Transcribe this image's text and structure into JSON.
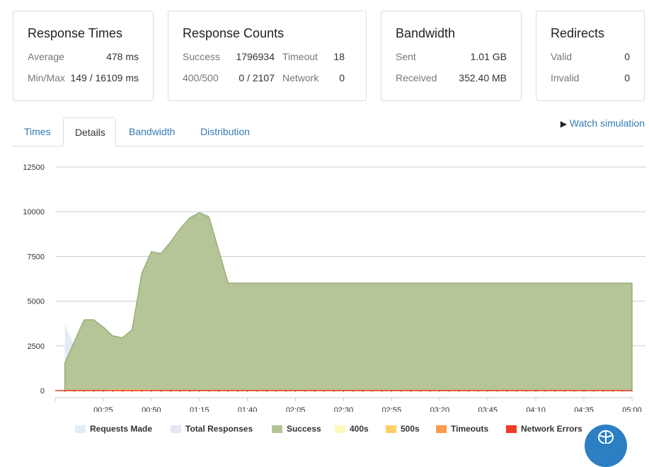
{
  "cards": {
    "response_times": {
      "title": "Response Times",
      "average_label": "Average",
      "average_value": "478 ms",
      "minmax_label": "Min/Max",
      "minmax_value": "149 / 16109 ms"
    },
    "response_counts": {
      "title": "Response Counts",
      "success_label": "Success",
      "success_value": "1796934",
      "timeout_label": "Timeout",
      "timeout_value": "18",
      "errors_label": "400/500",
      "errors_value": "0 / 2107",
      "network_label": "Network",
      "network_value": "0"
    },
    "bandwidth": {
      "title": "Bandwidth",
      "sent_label": "Sent",
      "sent_value": "1.01 GB",
      "received_label": "Received",
      "received_value": "352.40 MB"
    },
    "redirects": {
      "title": "Redirects",
      "valid_label": "Valid",
      "valid_value": "0",
      "invalid_label": "Invalid",
      "invalid_value": "0"
    }
  },
  "tabs": [
    {
      "label": "Times",
      "active": false
    },
    {
      "label": "Details",
      "active": true
    },
    {
      "label": "Bandwidth",
      "active": false
    },
    {
      "label": "Distribution",
      "active": false
    }
  ],
  "watch_simulation": "Watch simulation",
  "chart_data": {
    "type": "area",
    "ylim": [
      0,
      12500
    ],
    "y_ticks": [
      "0",
      "2500",
      "5000",
      "7500",
      "10000",
      "12500"
    ],
    "x_ticks": [
      "00:25",
      "00:50",
      "01:15",
      "01:40",
      "02:05",
      "02:30",
      "02:55",
      "03:20",
      "03:45",
      "04:10",
      "04:35",
      "05:00"
    ],
    "grid": true,
    "legend_placement": "bottom",
    "series": [
      {
        "name": "Requests Made",
        "color": "#e3ecf6",
        "points": [
          [
            5,
            3700
          ],
          [
            10,
            2500
          ],
          [
            15,
            4000
          ],
          [
            20,
            4000
          ],
          [
            25,
            3600
          ],
          [
            30,
            3100
          ],
          [
            35,
            3000
          ],
          [
            40,
            3450
          ],
          [
            45,
            6600
          ],
          [
            50,
            7850
          ],
          [
            55,
            7750
          ],
          [
            60,
            8400
          ],
          [
            65,
            9100
          ],
          [
            70,
            9700
          ],
          [
            75,
            10000
          ],
          [
            80,
            9800
          ],
          [
            85,
            7900
          ],
          [
            90,
            6050
          ],
          [
            300,
            6050
          ]
        ]
      },
      {
        "name": "Total Responses",
        "color": "#ece4f1",
        "points": [
          [
            5,
            1600
          ],
          [
            10,
            2800
          ],
          [
            15,
            4000
          ],
          [
            20,
            4000
          ],
          [
            25,
            3600
          ],
          [
            30,
            3100
          ],
          [
            35,
            3000
          ],
          [
            40,
            3450
          ],
          [
            45,
            6600
          ],
          [
            50,
            7800
          ],
          [
            55,
            7700
          ],
          [
            60,
            8350
          ],
          [
            65,
            9100
          ],
          [
            70,
            9700
          ],
          [
            75,
            10000
          ],
          [
            80,
            9750
          ],
          [
            85,
            7900
          ],
          [
            90,
            6020
          ],
          [
            300,
            6020
          ]
        ]
      },
      {
        "name": "Success",
        "color": "#b5c597",
        "points": [
          [
            5,
            1550
          ],
          [
            10,
            2750
          ],
          [
            15,
            3950
          ],
          [
            20,
            3950
          ],
          [
            25,
            3550
          ],
          [
            30,
            3050
          ],
          [
            35,
            2950
          ],
          [
            40,
            3400
          ],
          [
            45,
            6550
          ],
          [
            50,
            7750
          ],
          [
            55,
            7650
          ],
          [
            60,
            8300
          ],
          [
            65,
            9050
          ],
          [
            70,
            9650
          ],
          [
            75,
            9950
          ],
          [
            80,
            9700
          ],
          [
            85,
            7850
          ],
          [
            90,
            6000
          ],
          [
            300,
            6000
          ]
        ]
      },
      {
        "name": "400s",
        "color": "#fff8b8",
        "points": [
          [
            5,
            0
          ],
          [
            300,
            0
          ]
        ]
      },
      {
        "name": "500s",
        "color": "#ffcf66",
        "points": [
          [
            5,
            0
          ],
          [
            25,
            0
          ],
          [
            28,
            60
          ],
          [
            50,
            60
          ],
          [
            53,
            0
          ],
          [
            300,
            0
          ]
        ]
      },
      {
        "name": "Timeouts",
        "color": "#fc9c4a",
        "points": [
          [
            5,
            0
          ],
          [
            300,
            0
          ]
        ]
      },
      {
        "name": "Network Errors",
        "color": "#ee3c25",
        "points": [
          [
            0,
            0
          ],
          [
            300,
            0
          ]
        ]
      }
    ]
  }
}
